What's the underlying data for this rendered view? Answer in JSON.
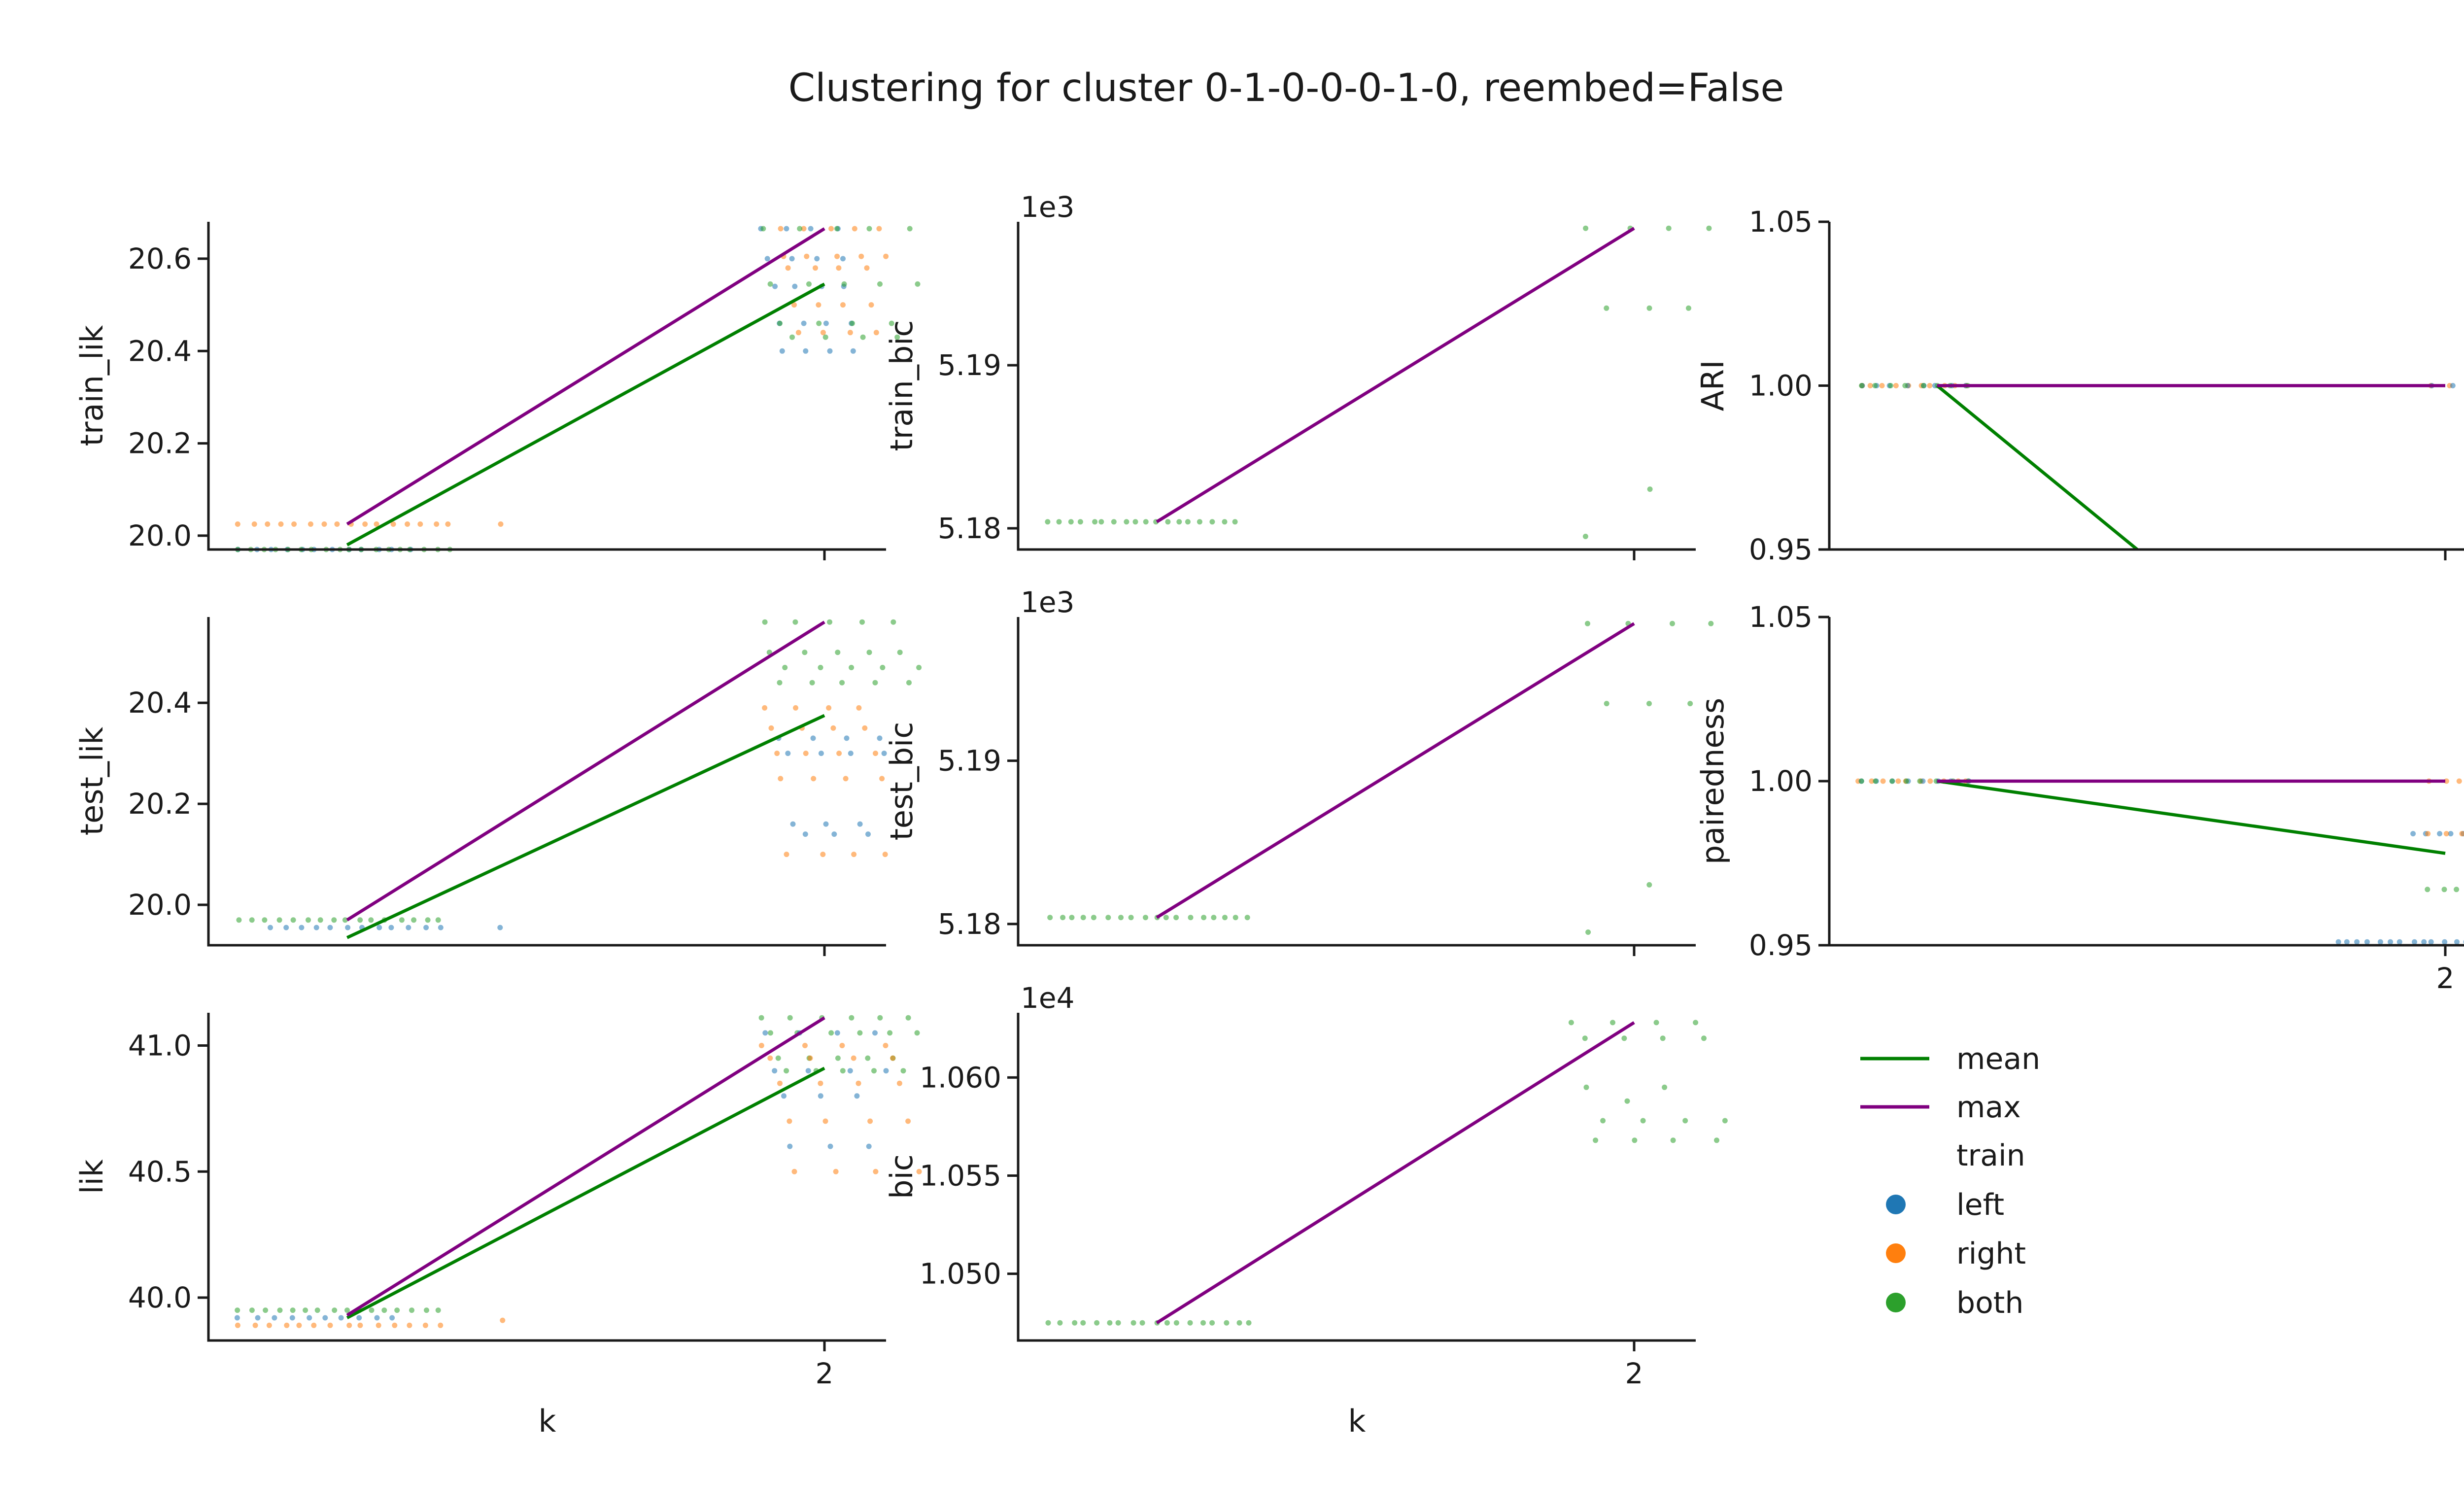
{
  "figure": {
    "title": "Clustering for cluster 0-1-0-0-0-1-0, reembed=False"
  },
  "colors": {
    "mean": "#008000",
    "max": "#800080",
    "left": "#1f77b4",
    "right": "#ff7f0e",
    "both": "#2ca02c",
    "axis": "#1a1a1a"
  },
  "legend": {
    "entries": [
      {
        "key": "mean",
        "label": "mean",
        "kind": "line"
      },
      {
        "key": "max",
        "label": "max",
        "kind": "line"
      },
      {
        "key": "train_title",
        "label": "train",
        "kind": "title"
      },
      {
        "key": "left",
        "label": "left",
        "kind": "marker"
      },
      {
        "key": "right",
        "label": "right",
        "kind": "marker"
      },
      {
        "key": "both",
        "label": "both",
        "kind": "marker"
      }
    ]
  },
  "chart_data": [
    {
      "type": "scatter",
      "row": 0,
      "col": 0,
      "ylabel": "train_lik",
      "xlabel": "",
      "xlim": [
        0.0,
        2.2
      ],
      "ylim": [
        19.97,
        20.68
      ],
      "yticks": [
        20.0,
        20.2,
        20.4,
        20.6
      ],
      "ytick_labels": [
        "20.0",
        "20.2",
        "20.4",
        "20.6"
      ],
      "xticks": [
        2
      ],
      "xtick_labels": [],
      "offset_label": "",
      "series": [
        {
          "name": "mean",
          "kind": "line",
          "color_key": "mean",
          "points": [
            [
              0.45,
              19.98
            ],
            [
              2.0,
              20.545
            ]
          ]
        },
        {
          "name": "max",
          "kind": "line",
          "color_key": "max",
          "points": [
            [
              0.45,
              20.025
            ],
            [
              2.0,
              20.665
            ]
          ]
        }
      ],
      "scatter": [
        {
          "group": "right",
          "x0": 0.1,
          "x1": 0.78,
          "y": [
            20.025
          ],
          "n": 16
        },
        {
          "group": "right",
          "x0": 0.95,
          "x1": 0.95,
          "y": [
            20.025
          ],
          "n": 1
        },
        {
          "group": "left",
          "x0": 0.1,
          "x1": 0.65,
          "y": [
            19.97
          ],
          "n": 12
        },
        {
          "group": "both",
          "x0": 0.1,
          "x1": 0.78,
          "y": [
            19.97
          ],
          "n": 18
        },
        {
          "group": "left",
          "x0": 1.8,
          "x1": 2.1,
          "y": [
            20.665,
            20.6,
            20.54,
            20.46,
            20.4
          ],
          "n": 20
        },
        {
          "group": "right",
          "x0": 1.85,
          "x1": 2.2,
          "y": [
            20.665,
            20.605,
            20.58,
            20.5,
            20.44
          ],
          "n": 22
        },
        {
          "group": "both",
          "x0": 1.8,
          "x1": 2.3,
          "y": [
            20.665,
            20.545,
            20.46,
            20.43
          ],
          "n": 18
        }
      ]
    },
    {
      "type": "scatter",
      "row": 0,
      "col": 1,
      "ylabel": "train_bic",
      "xlabel": "",
      "xlim": [
        0.0,
        2.2
      ],
      "ylim": [
        5.1787,
        5.1988
      ],
      "yticks": [
        5.18,
        5.19
      ],
      "ytick_labels": [
        "5.18",
        "5.19"
      ],
      "xticks": [
        2
      ],
      "xtick_labels": [],
      "offset_label": "1e3",
      "series": [
        {
          "name": "max",
          "kind": "line",
          "color_key": "max",
          "points": [
            [
              0.45,
              5.1804
            ],
            [
              2.0,
              5.1984
            ]
          ]
        }
      ],
      "scatter": [
        {
          "group": "both",
          "x0": 0.1,
          "x1": 0.7,
          "y": [
            5.1804
          ],
          "n": 18
        },
        {
          "group": "both",
          "x0": 1.85,
          "x1": 2.25,
          "y": [
            5.1984,
            5.1935
          ],
          "n": 7
        },
        {
          "group": "both",
          "x0": 1.85,
          "x1": 2.05,
          "y": [
            5.1795,
            5.1824
          ],
          "n": 2
        }
      ]
    },
    {
      "type": "scatter",
      "row": 0,
      "col": 2,
      "ylabel": "ARI",
      "xlabel": "",
      "xlim": [
        0.0,
        2.2
      ],
      "ylim": [
        0.95,
        1.05
      ],
      "yticks": [
        0.95,
        1.0,
        1.05
      ],
      "ytick_labels": [
        "0.95",
        "1.00",
        "1.05"
      ],
      "xticks": [
        2
      ],
      "xtick_labels": [],
      "offset_label": "",
      "series": [
        {
          "name": "mean",
          "kind": "line",
          "color_key": "mean",
          "points": [
            [
              0.35,
              1.0
            ],
            [
              1.0,
              0.95
            ]
          ]
        },
        {
          "name": "max",
          "kind": "line",
          "color_key": "max",
          "points": [
            [
              0.35,
              1.0
            ],
            [
              2.0,
              1.0
            ]
          ]
        }
      ],
      "scatter": [
        {
          "group": "right",
          "x0": 0.1,
          "x1": 0.45,
          "y": [
            1.0
          ],
          "n": 10
        },
        {
          "group": "left",
          "x0": 0.1,
          "x1": 0.45,
          "y": [
            1.0
          ],
          "n": 8
        },
        {
          "group": "both",
          "x0": 0.1,
          "x1": 0.45,
          "y": [
            1.0
          ],
          "n": 8
        },
        {
          "group": "right",
          "x0": 1.95,
          "x1": 2.3,
          "y": [
            1.0
          ],
          "n": 6
        },
        {
          "group": "left",
          "x0": 1.95,
          "x1": 2.1,
          "y": [
            1.0
          ],
          "n": 3
        }
      ]
    },
    {
      "type": "scatter",
      "row": 1,
      "col": 0,
      "ylabel": "test_lik",
      "xlabel": "",
      "xlim": [
        0.0,
        2.2
      ],
      "ylim": [
        19.92,
        20.57
      ],
      "yticks": [
        20.0,
        20.2,
        20.4
      ],
      "ytick_labels": [
        "20.0",
        "20.2",
        "20.4"
      ],
      "xticks": [
        2
      ],
      "xtick_labels": [],
      "offset_label": "",
      "series": [
        {
          "name": "mean",
          "kind": "line",
          "color_key": "mean",
          "points": [
            [
              0.45,
              19.935
            ],
            [
              2.0,
              20.375
            ]
          ]
        },
        {
          "name": "max",
          "kind": "line",
          "color_key": "max",
          "points": [
            [
              0.45,
              19.97
            ],
            [
              2.0,
              20.56
            ]
          ]
        }
      ],
      "scatter": [
        {
          "group": "both",
          "x0": 0.1,
          "x1": 0.75,
          "y": [
            19.97
          ],
          "n": 16
        },
        {
          "group": "left",
          "x0": 0.2,
          "x1": 0.75,
          "y": [
            19.955
          ],
          "n": 12
        },
        {
          "group": "left",
          "x0": 0.95,
          "x1": 0.95,
          "y": [
            19.955
          ],
          "n": 1
        },
        {
          "group": "both",
          "x0": 1.8,
          "x1": 2.3,
          "y": [
            20.56,
            20.5,
            20.44,
            20.47
          ],
          "n": 20
        },
        {
          "group": "right",
          "x0": 1.8,
          "x1": 2.2,
          "y": [
            20.39,
            20.35,
            20.3,
            20.25,
            20.1
          ],
          "n": 20
        },
        {
          "group": "left",
          "x0": 1.85,
          "x1": 2.2,
          "y": [
            20.33,
            20.3,
            20.16,
            20.14
          ],
          "n": 14
        }
      ]
    },
    {
      "type": "scatter",
      "row": 1,
      "col": 1,
      "ylabel": "test_bic",
      "xlabel": "",
      "xlim": [
        0.0,
        2.2
      ],
      "ylim": [
        5.1787,
        5.1988
      ],
      "yticks": [
        5.18,
        5.19
      ],
      "ytick_labels": [
        "5.18",
        "5.19"
      ],
      "xticks": [
        2
      ],
      "xtick_labels": [],
      "offset_label": "1e3",
      "series": [
        {
          "name": "max",
          "kind": "line",
          "color_key": "max",
          "points": [
            [
              0.45,
              5.1804
            ],
            [
              2.0,
              5.1984
            ]
          ]
        }
      ],
      "scatter": [
        {
          "group": "both",
          "x0": 0.1,
          "x1": 0.75,
          "y": [
            5.1804
          ],
          "n": 18
        },
        {
          "group": "both",
          "x0": 1.85,
          "x1": 2.25,
          "y": [
            5.1984,
            5.1935
          ],
          "n": 7
        },
        {
          "group": "both",
          "x0": 1.85,
          "x1": 2.05,
          "y": [
            5.1795,
            5.1824
          ],
          "n": 2
        }
      ]
    },
    {
      "type": "scatter",
      "row": 1,
      "col": 2,
      "ylabel": "pairedness",
      "xlabel": "",
      "xlim": [
        0.0,
        2.2
      ],
      "ylim": [
        0.95,
        1.05
      ],
      "yticks": [
        0.95,
        1.0,
        1.05
      ],
      "ytick_labels": [
        "0.95",
        "1.00",
        "1.05"
      ],
      "xticks": [
        2
      ],
      "xtick_labels": [
        "2"
      ],
      "offset_label": "",
      "series": [
        {
          "name": "mean",
          "kind": "line",
          "color_key": "mean",
          "points": [
            [
              0.35,
              1.0
            ],
            [
              2.0,
              0.978
            ]
          ]
        },
        {
          "name": "max",
          "kind": "line",
          "color_key": "max",
          "points": [
            [
              0.35,
              1.0
            ],
            [
              2.0,
              1.0
            ]
          ]
        }
      ],
      "scatter": [
        {
          "group": "right",
          "x0": 0.1,
          "x1": 0.45,
          "y": [
            1.0
          ],
          "n": 10
        },
        {
          "group": "left",
          "x0": 0.1,
          "x1": 0.45,
          "y": [
            1.0
          ],
          "n": 8
        },
        {
          "group": "both",
          "x0": 0.1,
          "x1": 0.45,
          "y": [
            1.0
          ],
          "n": 8
        },
        {
          "group": "right",
          "x0": 1.95,
          "x1": 2.2,
          "y": [
            1.0
          ],
          "n": 6
        },
        {
          "group": "left",
          "x0": 1.9,
          "x1": 2.1,
          "y": [
            0.984
          ],
          "n": 6
        },
        {
          "group": "right",
          "x0": 1.95,
          "x1": 2.1,
          "y": [
            0.984
          ],
          "n": 4
        },
        {
          "group": "both",
          "x0": 1.95,
          "x1": 2.25,
          "y": [
            0.967
          ],
          "n": 8
        },
        {
          "group": "left",
          "x0": 1.65,
          "x1": 2.1,
          "y": [
            0.951
          ],
          "n": 14
        }
      ]
    },
    {
      "type": "scatter",
      "row": 2,
      "col": 0,
      "ylabel": "lik",
      "xlabel": "k",
      "xlim": [
        0.0,
        2.2
      ],
      "ylim": [
        39.83,
        41.13
      ],
      "yticks": [
        40.0,
        40.5,
        41.0
      ],
      "ytick_labels": [
        "40.0",
        "40.5",
        "41.0"
      ],
      "xticks": [
        2
      ],
      "xtick_labels": [
        "2"
      ],
      "offset_label": "",
      "series": [
        {
          "name": "mean",
          "kind": "line",
          "color_key": "mean",
          "points": [
            [
              0.45,
              39.92
            ],
            [
              2.0,
              40.91
            ]
          ]
        },
        {
          "name": "max",
          "kind": "line",
          "color_key": "max",
          "points": [
            [
              0.45,
              39.93
            ],
            [
              2.0,
              41.11
            ]
          ]
        }
      ],
      "scatter": [
        {
          "group": "both",
          "x0": 0.1,
          "x1": 0.75,
          "y": [
            39.95
          ],
          "n": 16
        },
        {
          "group": "left",
          "x0": 0.1,
          "x1": 0.6,
          "y": [
            39.92
          ],
          "n": 10
        },
        {
          "group": "right",
          "x0": 0.1,
          "x1": 0.75,
          "y": [
            39.89
          ],
          "n": 14
        },
        {
          "group": "right",
          "x0": 0.95,
          "x1": 0.95,
          "y": [
            39.91
          ],
          "n": 1
        },
        {
          "group": "both",
          "x0": 1.8,
          "x1": 2.3,
          "y": [
            41.11,
            41.05,
            40.95,
            40.9
          ],
          "n": 22
        },
        {
          "group": "right",
          "x0": 1.8,
          "x1": 2.3,
          "y": [
            41.0,
            40.95,
            40.85,
            40.7,
            40.5
          ],
          "n": 20
        },
        {
          "group": "left",
          "x0": 1.8,
          "x1": 2.2,
          "y": [
            41.05,
            40.9,
            40.8,
            40.6
          ],
          "n": 14
        }
      ]
    },
    {
      "type": "scatter",
      "row": 2,
      "col": 1,
      "ylabel": "bic",
      "xlabel": "k",
      "xlim": [
        0.0,
        2.2
      ],
      "ylim": [
        1.0466,
        1.0633
      ],
      "yticks": [
        1.05,
        1.055,
        1.06
      ],
      "ytick_labels": [
        "1.050",
        "1.055",
        "1.060"
      ],
      "xticks": [
        2
      ],
      "xtick_labels": [
        "2"
      ],
      "offset_label": "1e4",
      "series": [
        {
          "name": "max",
          "kind": "line",
          "color_key": "max",
          "points": [
            [
              0.45,
              1.0475
            ],
            [
              2.0,
              1.0628
            ]
          ]
        }
      ],
      "scatter": [
        {
          "group": "both",
          "x0": 0.1,
          "x1": 0.75,
          "y": [
            1.0475
          ],
          "n": 18
        },
        {
          "group": "both",
          "x0": 1.8,
          "x1": 2.3,
          "y": [
            1.0628,
            1.062,
            1.0568,
            1.0578
          ],
          "n": 16
        },
        {
          "group": "both",
          "x0": 1.85,
          "x1": 2.1,
          "y": [
            1.0595,
            1.0588
          ],
          "n": 3
        }
      ]
    }
  ]
}
